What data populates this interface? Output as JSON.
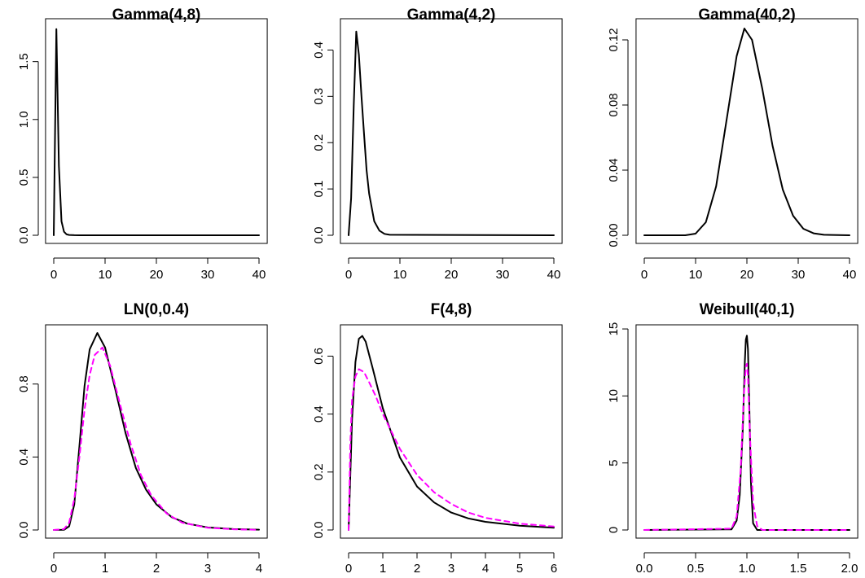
{
  "chart_data": [
    {
      "type": "line",
      "title": "Gamma(4,8)",
      "xlim": [
        0,
        40
      ],
      "ylim": [
        0,
        1.8
      ],
      "xticks": [
        0,
        10,
        20,
        30,
        40
      ],
      "xtick_labels": [
        "0",
        "10",
        "20",
        "30",
        "40"
      ],
      "yticks": [
        0,
        0.5,
        1.0,
        1.5
      ],
      "ytick_labels": [
        "0.0",
        "0.5",
        "1.0",
        "1.5"
      ],
      "grid": false,
      "series": [
        {
          "color": "#000000",
          "style": "solid",
          "x": [
            0,
            0.5,
            1,
            1.5,
            2,
            2.5,
            3,
            4,
            5,
            40
          ],
          "y": [
            0,
            1.78,
            0.6,
            0.12,
            0.03,
            0.008,
            0.003,
            0.0005,
            0,
            0
          ]
        }
      ]
    },
    {
      "type": "line",
      "title": "Gamma(4,2)",
      "xlim": [
        0,
        40
      ],
      "ylim": [
        0,
        0.45
      ],
      "xticks": [
        0,
        10,
        20,
        30,
        40
      ],
      "xtick_labels": [
        "0",
        "10",
        "20",
        "30",
        "40"
      ],
      "yticks": [
        0,
        0.1,
        0.2,
        0.3,
        0.4
      ],
      "ytick_labels": [
        "0.0",
        "0.1",
        "0.2",
        "0.3",
        "0.4"
      ],
      "grid": false,
      "series": [
        {
          "color": "#000000",
          "style": "solid",
          "x": [
            0,
            0.5,
            1,
            1.5,
            2,
            2.5,
            3,
            3.5,
            4,
            5,
            6,
            7,
            8,
            40
          ],
          "y": [
            0,
            0.08,
            0.28,
            0.44,
            0.39,
            0.3,
            0.22,
            0.14,
            0.09,
            0.03,
            0.01,
            0.003,
            0.001,
            0
          ]
        }
      ]
    },
    {
      "type": "line",
      "title": "Gamma(40,2)",
      "xlim": [
        0,
        40
      ],
      "ylim": [
        0,
        0.128
      ],
      "xticks": [
        0,
        10,
        20,
        30,
        40
      ],
      "xtick_labels": [
        "0",
        "10",
        "20",
        "30",
        "40"
      ],
      "yticks": [
        0,
        0.04,
        0.08,
        0.12
      ],
      "ytick_labels": [
        "0.00",
        "0.04",
        "0.08",
        "0.12"
      ],
      "grid": false,
      "series": [
        {
          "color": "#000000",
          "style": "solid",
          "x": [
            0,
            8,
            10,
            12,
            14,
            16,
            18,
            19.5,
            21,
            23,
            25,
            27,
            29,
            31,
            33,
            35,
            40
          ],
          "y": [
            0,
            0,
            0.001,
            0.008,
            0.03,
            0.07,
            0.11,
            0.127,
            0.12,
            0.09,
            0.055,
            0.028,
            0.012,
            0.004,
            0.0012,
            0.0003,
            0
          ]
        }
      ]
    },
    {
      "type": "line",
      "title": "LN(0,0.4)",
      "xlim": [
        0,
        4
      ],
      "ylim": [
        0,
        1.08
      ],
      "xticks": [
        0,
        1,
        2,
        3,
        4
      ],
      "xtick_labels": [
        "0",
        "1",
        "2",
        "3",
        "4"
      ],
      "yticks": [
        0,
        0.4,
        0.8
      ],
      "ytick_labels": [
        "0.0",
        "0.4",
        "0.8"
      ],
      "grid": false,
      "series": [
        {
          "color": "#000000",
          "style": "solid",
          "x": [
            0,
            0.2,
            0.3,
            0.4,
            0.5,
            0.6,
            0.7,
            0.85,
            1.0,
            1.2,
            1.4,
            1.6,
            1.8,
            2.0,
            2.3,
            2.6,
            3.0,
            3.5,
            4.0
          ],
          "y": [
            0,
            0.001,
            0.02,
            0.14,
            0.46,
            0.79,
            0.99,
            1.08,
            1.0,
            0.77,
            0.53,
            0.34,
            0.22,
            0.14,
            0.07,
            0.035,
            0.014,
            0.005,
            0.002
          ]
        },
        {
          "color": "#ff00ff",
          "style": "dashed",
          "x": [
            0,
            0.2,
            0.3,
            0.4,
            0.5,
            0.6,
            0.7,
            0.8,
            0.95,
            1.1,
            1.3,
            1.5,
            1.7,
            1.9,
            2.2,
            2.5,
            3.0,
            3.5,
            4.0
          ],
          "y": [
            0,
            0.005,
            0.04,
            0.17,
            0.4,
            0.66,
            0.85,
            0.96,
            1.0,
            0.9,
            0.68,
            0.47,
            0.3,
            0.19,
            0.09,
            0.04,
            0.012,
            0.004,
            0.001
          ]
        }
      ]
    },
    {
      "type": "line",
      "title": "F(4,8)",
      "xlim": [
        0,
        6
      ],
      "ylim": [
        0,
        0.68
      ],
      "xticks": [
        0,
        1,
        2,
        3,
        4,
        5,
        6
      ],
      "xtick_labels": [
        "0",
        "1",
        "2",
        "3",
        "4",
        "5",
        "6"
      ],
      "yticks": [
        0,
        0.2,
        0.4,
        0.6
      ],
      "ytick_labels": [
        "0.0",
        "0.2",
        "0.4",
        "0.6"
      ],
      "grid": false,
      "series": [
        {
          "color": "#000000",
          "style": "solid",
          "x": [
            0,
            0.1,
            0.2,
            0.3,
            0.4,
            0.5,
            0.7,
            1.0,
            1.5,
            2.0,
            2.5,
            3.0,
            3.5,
            4.0,
            5.0,
            6.0
          ],
          "y": [
            0,
            0.38,
            0.58,
            0.66,
            0.67,
            0.65,
            0.56,
            0.42,
            0.25,
            0.15,
            0.095,
            0.06,
            0.04,
            0.028,
            0.015,
            0.008
          ]
        },
        {
          "color": "#ff00ff",
          "style": "dashed",
          "x": [
            0,
            0.05,
            0.1,
            0.2,
            0.3,
            0.45,
            0.6,
            0.8,
            1.0,
            1.5,
            2.0,
            2.5,
            3.0,
            3.5,
            4.0,
            5.0,
            6.0
          ],
          "y": [
            0,
            0.3,
            0.45,
            0.53,
            0.555,
            0.545,
            0.51,
            0.46,
            0.4,
            0.28,
            0.19,
            0.13,
            0.09,
            0.06,
            0.042,
            0.022,
            0.012
          ]
        }
      ]
    },
    {
      "type": "line",
      "title": "Weibull(40,1)",
      "xlim": [
        0,
        2
      ],
      "ylim": [
        0,
        14.7
      ],
      "xticks": [
        0,
        0.5,
        1.0,
        1.5,
        2.0
      ],
      "xtick_labels": [
        "0.0",
        "0.5",
        "1.0",
        "1.5",
        "2.0"
      ],
      "yticks": [
        0,
        5,
        10,
        15
      ],
      "ytick_labels": [
        "0",
        "5",
        "10",
        "15"
      ],
      "grid": false,
      "series": [
        {
          "color": "#000000",
          "style": "solid",
          "x": [
            0,
            0.85,
            0.9,
            0.93,
            0.96,
            0.98,
            0.99,
            1.0,
            1.01,
            1.02,
            1.04,
            1.06,
            1.1,
            2.0
          ],
          "y": [
            0,
            0.05,
            0.7,
            2.6,
            7.6,
            12.6,
            14.2,
            14.5,
            13.5,
            10.5,
            3.5,
            0.5,
            0,
            0
          ]
        },
        {
          "color": "#ff00ff",
          "style": "dashed",
          "x": [
            0,
            0.85,
            0.9,
            0.94,
            0.97,
            0.99,
            1.0,
            1.01,
            1.03,
            1.06,
            1.1,
            1.15,
            2.0
          ],
          "y": [
            0,
            0.1,
            1.0,
            4.5,
            10.0,
            12.2,
            12.4,
            11.5,
            7.0,
            2.0,
            0.3,
            0,
            0
          ]
        }
      ]
    }
  ]
}
